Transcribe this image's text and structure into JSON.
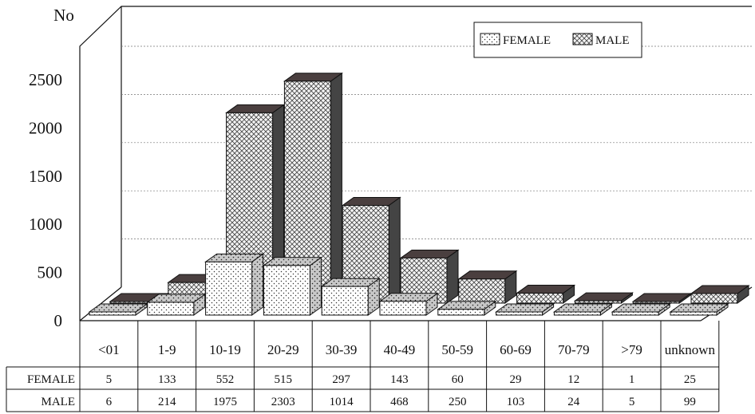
{
  "chart_data": {
    "type": "bar",
    "title": "",
    "xlabel": "",
    "ylabel": "No",
    "ylim": [
      0,
      2500
    ],
    "yticks": [
      0,
      500,
      1000,
      1500,
      2000,
      2500
    ],
    "grid": true,
    "legend_position": "top-right",
    "categories": [
      "<01",
      "1-9",
      "10-19",
      "20-29",
      "30-39",
      "40-49",
      "50-59",
      "60-69",
      "70-79",
      ">79",
      "unknown"
    ],
    "series": [
      {
        "name": "FEMALE",
        "values": [
          5,
          133,
          552,
          515,
          297,
          143,
          60,
          29,
          12,
          1,
          25
        ]
      },
      {
        "name": "MALE",
        "values": [
          6,
          214,
          1975,
          2303,
          1014,
          468,
          250,
          103,
          24,
          5,
          99
        ]
      }
    ],
    "data_table": true
  }
}
